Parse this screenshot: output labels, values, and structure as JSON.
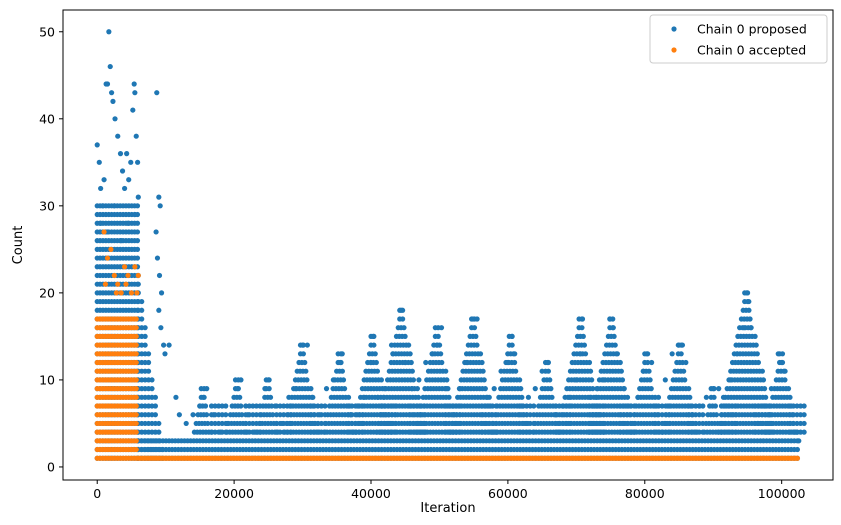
{
  "chart_data": {
    "type": "scatter",
    "xlabel": "Iteration",
    "ylabel": "Count",
    "xlim": [
      -5000,
      107500
    ],
    "ylim": [
      -1.5,
      52.5
    ],
    "xticks": [
      0,
      20000,
      40000,
      60000,
      80000,
      100000
    ],
    "xtick_labels": [
      "0",
      "20000",
      "40000",
      "60000",
      "80000",
      "100000"
    ],
    "yticks": [
      0,
      10,
      20,
      30,
      40,
      50
    ],
    "ytick_labels": [
      "0",
      "10",
      "20",
      "30",
      "40",
      "50"
    ],
    "grid": false,
    "legend_position": "top-right",
    "marker": "dot",
    "series": [
      {
        "name": "Chain 0 proposed",
        "color": "#1f77b4",
        "points": [
          [
            0,
            37
          ],
          [
            300,
            35
          ],
          [
            500,
            32
          ],
          [
            800,
            30
          ],
          [
            1000,
            33
          ],
          [
            1300,
            44
          ],
          [
            1500,
            44
          ],
          [
            1700,
            50
          ],
          [
            1900,
            46
          ],
          [
            2100,
            43
          ],
          [
            2300,
            42
          ],
          [
            2600,
            40
          ],
          [
            3000,
            38
          ],
          [
            3400,
            36
          ],
          [
            3700,
            34
          ],
          [
            4000,
            32
          ],
          [
            4300,
            36
          ],
          [
            4600,
            33
          ],
          [
            4900,
            35
          ],
          [
            5200,
            41
          ],
          [
            5400,
            44
          ],
          [
            5500,
            43
          ],
          [
            5700,
            38
          ],
          [
            5900,
            35
          ],
          [
            6000,
            31
          ],
          [
            500,
            28
          ],
          [
            1500,
            27
          ],
          [
            2500,
            30
          ],
          [
            3500,
            26
          ],
          [
            4500,
            28
          ],
          [
            5500,
            29
          ],
          [
            8700,
            43
          ],
          [
            9000,
            31
          ],
          [
            9200,
            30
          ],
          [
            8600,
            27
          ],
          [
            8800,
            24
          ],
          [
            9100,
            22
          ],
          [
            9400,
            20
          ],
          [
            10500,
            14
          ],
          [
            9700,
            14
          ],
          [
            9900,
            13
          ],
          [
            9000,
            18
          ],
          [
            9300,
            16
          ],
          [
            11500,
            8
          ],
          [
            12000,
            6
          ],
          [
            13000,
            5
          ],
          [
            14000,
            6
          ],
          [
            15000,
            7
          ],
          [
            15500,
            8
          ],
          [
            16000,
            9
          ],
          [
            17000,
            6
          ],
          [
            18000,
            4
          ],
          [
            19000,
            5
          ],
          [
            20500,
            9
          ],
          [
            21000,
            10
          ],
          [
            22000,
            6
          ],
          [
            23000,
            4
          ],
          [
            24500,
            9
          ],
          [
            25000,
            10
          ],
          [
            26000,
            7
          ],
          [
            27000,
            5
          ],
          [
            28000,
            8
          ],
          [
            29000,
            9
          ],
          [
            30000,
            14
          ],
          [
            30700,
            14
          ],
          [
            31500,
            8
          ],
          [
            32500,
            6
          ],
          [
            33500,
            9
          ],
          [
            34500,
            10
          ],
          [
            35500,
            12
          ],
          [
            35800,
            13
          ],
          [
            37000,
            6
          ],
          [
            38000,
            7
          ],
          [
            39000,
            8
          ],
          [
            40000,
            12
          ],
          [
            40300,
            15
          ],
          [
            41000,
            8
          ],
          [
            42000,
            9
          ],
          [
            43000,
            14
          ],
          [
            43200,
            13
          ],
          [
            44400,
            18
          ],
          [
            45000,
            12
          ],
          [
            45500,
            14
          ],
          [
            46000,
            9
          ],
          [
            47000,
            10
          ],
          [
            48000,
            12
          ],
          [
            49000,
            13
          ],
          [
            49700,
            14
          ],
          [
            50300,
            16
          ],
          [
            51000,
            9
          ],
          [
            52000,
            7
          ],
          [
            53000,
            9
          ],
          [
            54000,
            12
          ],
          [
            54900,
            17
          ],
          [
            55500,
            17
          ],
          [
            56000,
            13
          ],
          [
            57000,
            8
          ],
          [
            58000,
            9
          ],
          [
            59000,
            11
          ],
          [
            60000,
            12
          ],
          [
            60600,
            15
          ],
          [
            61000,
            13
          ],
          [
            62000,
            7
          ],
          [
            63000,
            8
          ],
          [
            64000,
            9
          ],
          [
            65000,
            11
          ],
          [
            65800,
            12
          ],
          [
            67000,
            6
          ],
          [
            68000,
            7
          ],
          [
            69000,
            8
          ],
          [
            70000,
            10
          ],
          [
            70600,
            13
          ],
          [
            70900,
            17
          ],
          [
            72000,
            8
          ],
          [
            73000,
            9
          ],
          [
            74000,
            10
          ],
          [
            74900,
            17
          ],
          [
            75400,
            16
          ],
          [
            76000,
            13
          ],
          [
            77000,
            9
          ],
          [
            78000,
            7
          ],
          [
            79000,
            8
          ],
          [
            79800,
            11
          ],
          [
            80300,
            13
          ],
          [
            81000,
            12
          ],
          [
            82000,
            8
          ],
          [
            83000,
            10
          ],
          [
            84000,
            13
          ],
          [
            85000,
            14
          ],
          [
            85500,
            14
          ],
          [
            86000,
            12
          ],
          [
            87000,
            6
          ],
          [
            88000,
            7
          ],
          [
            89000,
            8
          ],
          [
            90000,
            9
          ],
          [
            90800,
            9
          ],
          [
            91500,
            8
          ],
          [
            92500,
            10
          ],
          [
            93500,
            13
          ],
          [
            94500,
            16
          ],
          [
            94900,
            20
          ],
          [
            95200,
            19
          ],
          [
            95500,
            16
          ],
          [
            96500,
            5
          ],
          [
            97500,
            7
          ],
          [
            98500,
            9
          ],
          [
            99500,
            13
          ],
          [
            100000,
            12
          ],
          [
            100500,
            11
          ],
          [
            101000,
            9
          ],
          [
            102000,
            4
          ],
          [
            102500,
            3
          ]
        ]
      },
      {
        "name": "Chain 0 accepted",
        "color": "#ff7f0e",
        "points": [
          [
            1000,
            27
          ],
          [
            1500,
            24
          ],
          [
            2000,
            25
          ],
          [
            2500,
            22
          ],
          [
            3000,
            21
          ],
          [
            3500,
            20
          ],
          [
            4000,
            23
          ],
          [
            4500,
            22
          ],
          [
            5000,
            20
          ],
          [
            5500,
            23
          ],
          [
            6000,
            22
          ],
          [
            1200,
            21
          ],
          [
            2800,
            20
          ],
          [
            4200,
            21
          ],
          [
            5800,
            20
          ]
        ]
      }
    ]
  },
  "legend": {
    "entries": [
      "Chain 0 proposed",
      "Chain 0 accepted"
    ]
  }
}
